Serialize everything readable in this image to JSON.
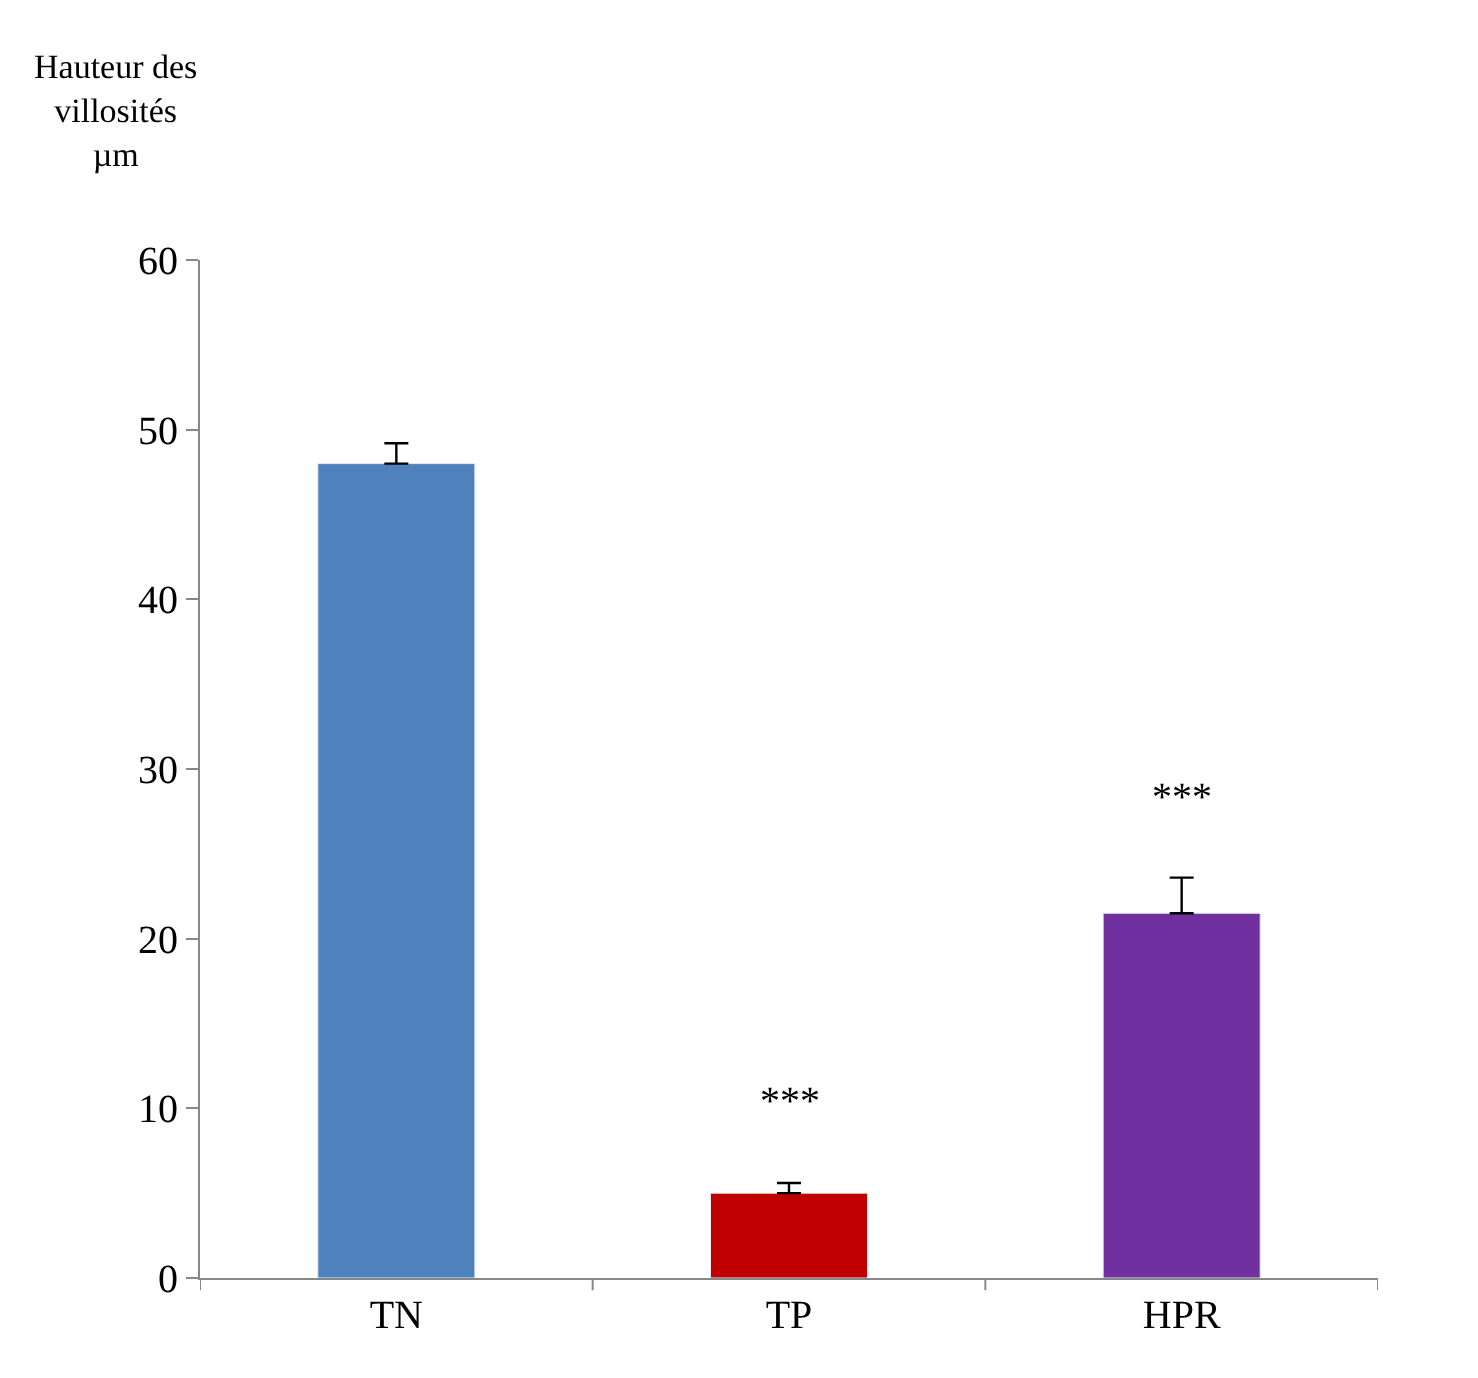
{
  "chart_data": {
    "type": "bar",
    "ylabel": "Hauteur des\nvillosités\nµm",
    "categories": [
      "TN",
      "TP",
      "HPR"
    ],
    "values": [
      48.0,
      5.0,
      21.5
    ],
    "colors": [
      "#4f81bd",
      "#c00000",
      "#7030a0"
    ],
    "errors": [
      [
        48.0,
        49.2
      ],
      [
        5.0,
        5.6
      ],
      [
        21.5,
        23.6
      ]
    ],
    "annotations": [
      "***",
      "***"
    ],
    "ylim": [
      0,
      60
    ],
    "yticks": [
      0,
      10,
      20,
      30,
      40,
      50,
      60
    ]
  }
}
